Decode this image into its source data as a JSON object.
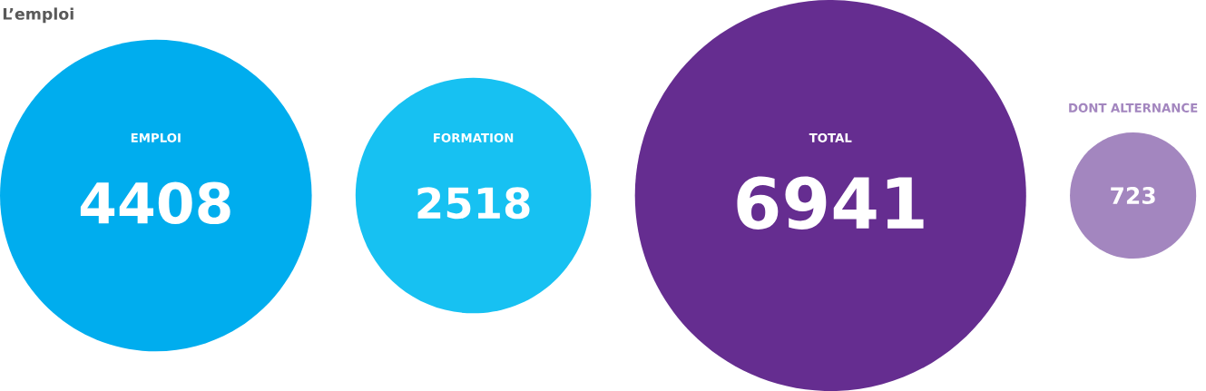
{
  "chart_data": {
    "type": "other",
    "title": "L’emploi",
    "categories": [
      "EMPLOI",
      "FORMATION",
      "TOTAL",
      "DONT ALTERNANCE"
    ],
    "values": [
      4408,
      2518,
      6941,
      723
    ],
    "colors": [
      "#00adee",
      "#17c1f2",
      "#652d90",
      "#a386bf"
    ],
    "data_labels": true
  }
}
